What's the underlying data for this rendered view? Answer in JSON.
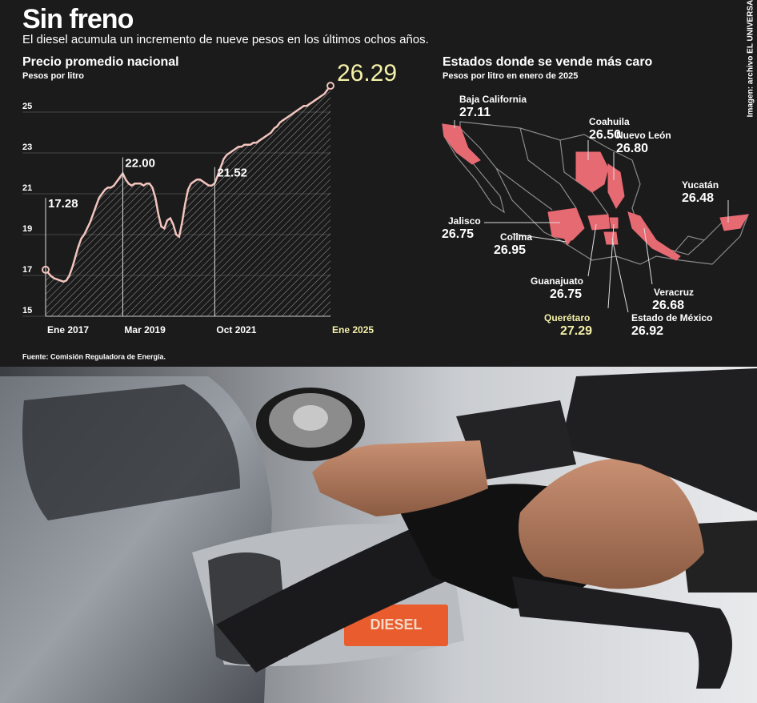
{
  "header": {
    "title": "Sin freno",
    "subtitle": "El diesel acumula un incremento de nueve pesos en los últimos ochos años.",
    "credit": "Imagen: archivo EL UNIVERSAL"
  },
  "chart_data": {
    "type": "line",
    "title": "Precio promedio nacional",
    "subtitle": "Pesos por litro",
    "categories": [
      "Ene 2017",
      null,
      null,
      null,
      null,
      null,
      null,
      null,
      null,
      null,
      null,
      null,
      null,
      null,
      null,
      null,
      null,
      null,
      null,
      null,
      null,
      null,
      null,
      null,
      null,
      null,
      "Mar 2019",
      null,
      null,
      null,
      null,
      null,
      null,
      null,
      null,
      null,
      null,
      null,
      null,
      null,
      null,
      null,
      null,
      null,
      null,
      null,
      null,
      null,
      null,
      null,
      null,
      null,
      null,
      null,
      null,
      null,
      null,
      "Oct 2021",
      null,
      null,
      null,
      null,
      null,
      null,
      null,
      null,
      null,
      null,
      null,
      null,
      null,
      null,
      null,
      null,
      null,
      null,
      null,
      null,
      null,
      null,
      null,
      null,
      null,
      null,
      null,
      null,
      null,
      null,
      null,
      null,
      null,
      null,
      null,
      null,
      null,
      null,
      "Ene 2025"
    ],
    "values": [
      17.28,
      17.1,
      16.95,
      16.85,
      16.8,
      16.75,
      16.7,
      16.75,
      17.0,
      17.4,
      17.9,
      18.4,
      18.8,
      19.0,
      19.3,
      19.6,
      20.0,
      20.4,
      20.8,
      21.0,
      21.2,
      21.3,
      21.3,
      21.4,
      21.6,
      21.8,
      22.0,
      21.7,
      21.5,
      21.4,
      21.5,
      21.5,
      21.5,
      21.4,
      21.5,
      21.5,
      21.3,
      20.8,
      20.0,
      19.4,
      19.3,
      19.7,
      19.8,
      19.5,
      19.0,
      18.9,
      19.6,
      20.5,
      21.2,
      21.5,
      21.6,
      21.7,
      21.7,
      21.6,
      21.5,
      21.4,
      21.4,
      21.52,
      21.9,
      22.3,
      22.7,
      22.9,
      23.0,
      23.1,
      23.2,
      23.3,
      23.3,
      23.4,
      23.4,
      23.4,
      23.5,
      23.5,
      23.6,
      23.7,
      23.8,
      23.9,
      24.0,
      24.2,
      24.3,
      24.5,
      24.6,
      24.7,
      24.8,
      24.9,
      25.0,
      25.1,
      25.2,
      25.3,
      25.3,
      25.4,
      25.5,
      25.6,
      25.7,
      25.8,
      25.9,
      26.1,
      26.29
    ],
    "value_labels": [
      "17.28",
      null,
      null,
      null,
      null,
      null,
      null,
      null,
      null,
      null,
      null,
      null,
      null,
      null,
      null,
      null,
      null,
      null,
      null,
      null,
      null,
      null,
      null,
      null,
      null,
      null,
      "22.00",
      null,
      null,
      null,
      null,
      null,
      null,
      null,
      null,
      null,
      null,
      null,
      null,
      null,
      null,
      null,
      null,
      null,
      null,
      null,
      null,
      null,
      null,
      null,
      null,
      null,
      null,
      null,
      null,
      null,
      null,
      "21.52",
      null,
      null,
      null,
      null,
      null,
      null,
      null,
      null,
      null,
      null,
      null,
      null,
      null,
      null,
      null,
      null,
      null,
      null,
      null,
      null,
      null,
      null,
      null,
      null,
      null,
      null,
      null,
      null,
      null,
      null,
      null,
      null,
      null,
      null,
      null,
      null,
      null,
      null,
      "26.29"
    ],
    "color": "#f2c4bd",
    "highlight_color": "#f5f0a8",
    "ylim": [
      15,
      26.5
    ],
    "yticks": [
      15,
      17,
      19,
      21,
      23,
      25
    ],
    "grid": true
  },
  "map": {
    "title": "Estados donde se vende más caro",
    "subtitle": "Pesos por litro en enero de 2025",
    "states": [
      {
        "name": "Baja California",
        "value": "27.11"
      },
      {
        "name": "Coahuila",
        "value": "26.50"
      },
      {
        "name": "Nuevo León",
        "value": "26.80"
      },
      {
        "name": "Yucatán",
        "value": "26.48"
      },
      {
        "name": "Jalisco",
        "value": "26.75"
      },
      {
        "name": "Colima",
        "value": "26.95"
      },
      {
        "name": "Guanajuato",
        "value": "26.75"
      },
      {
        "name": "Querétaro",
        "value": "27.29"
      },
      {
        "name": "Veracruz",
        "value": "26.68"
      },
      {
        "name": "Estado de México",
        "value": "26.92"
      }
    ]
  },
  "source": "Fuente: Comisión Reguladora de Energía.",
  "photo": {
    "label": "DIESEL"
  }
}
